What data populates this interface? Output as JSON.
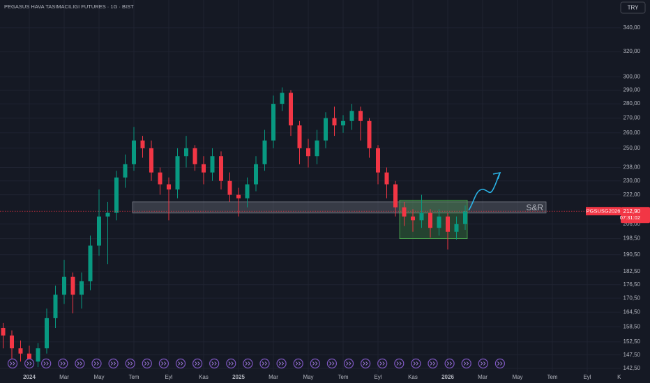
{
  "chart_data": {
    "type": "candlestick",
    "title": "PEGASUS HAVA TASIMACILIGI FUTURES · 1G · BIST",
    "currency": "TRY",
    "symbol": "PGSUSG2026",
    "last_price": {
      "value": 212.9,
      "label": "212,90"
    },
    "countdown": "07:31:02",
    "log_scale": true,
    "grid": true,
    "up_color": "#089981",
    "down_color": "#f23645",
    "xlim": [
      -1.68,
      33.92
    ],
    "ylim": [
      141,
      365
    ],
    "xticks": [
      {
        "value": 0,
        "label": "2024"
      },
      {
        "value": 2,
        "label": "Mar"
      },
      {
        "value": 4,
        "label": "May"
      },
      {
        "value": 6,
        "label": "Tem"
      },
      {
        "value": 8,
        "label": "Eyl"
      },
      {
        "value": 10,
        "label": "Kas"
      },
      {
        "value": 12,
        "label": "2025"
      },
      {
        "value": 14,
        "label": "Mar"
      },
      {
        "value": 16,
        "label": "May"
      },
      {
        "value": 18,
        "label": "Tem"
      },
      {
        "value": 20,
        "label": "Eyl"
      },
      {
        "value": 22,
        "label": "Kas"
      },
      {
        "value": 24,
        "label": "2026"
      },
      {
        "value": 26,
        "label": "Mar"
      },
      {
        "value": 28,
        "label": "May"
      },
      {
        "value": 30,
        "label": "Tem"
      },
      {
        "value": 32,
        "label": "Eyl"
      },
      {
        "value": 34,
        "label": "Kas"
      }
    ],
    "yticks": [
      {
        "value": 340,
        "label": "340,00"
      },
      {
        "value": 320,
        "label": "320,00"
      },
      {
        "value": 300,
        "label": "300,00"
      },
      {
        "value": 290,
        "label": "290,00"
      },
      {
        "value": 280,
        "label": "280,00"
      },
      {
        "value": 270,
        "label": "270,00"
      },
      {
        "value": 260,
        "label": "260,00"
      },
      {
        "value": 250,
        "label": "250,00"
      },
      {
        "value": 238,
        "label": "238,00"
      },
      {
        "value": 230,
        "label": "230,00"
      },
      {
        "value": 222,
        "label": "222,00"
      },
      {
        "value": 206,
        "label": "206,00"
      },
      {
        "value": 198.5,
        "label": "198,50"
      },
      {
        "value": 190.5,
        "label": "190,50"
      },
      {
        "value": 182.5,
        "label": "182,50"
      },
      {
        "value": 176.5,
        "label": "176,50"
      },
      {
        "value": 170.5,
        "label": "170,50"
      },
      {
        "value": 164.5,
        "label": "164,50"
      },
      {
        "value": 158.5,
        "label": "158,50"
      },
      {
        "value": 152.5,
        "label": "152,50"
      },
      {
        "value": 147.5,
        "label": "147,50"
      },
      {
        "value": 142.5,
        "label": "142,50"
      }
    ],
    "x": [
      -1.5,
      -1,
      -0.5,
      0,
      0.5,
      1,
      1.5,
      2,
      2.5,
      3,
      3.5,
      4,
      4.5,
      5,
      5.5,
      6,
      6.5,
      7,
      7.5,
      8,
      8.5,
      9,
      9.5,
      10,
      10.5,
      11,
      11.5,
      12,
      12.5,
      13,
      13.5,
      14,
      14.5,
      15,
      15.5,
      16,
      16.5,
      17,
      17.5,
      18,
      18.5,
      19,
      19.5,
      20,
      20.5,
      21,
      21.5,
      22,
      22.5,
      23,
      23.5,
      24,
      24.5,
      25
    ],
    "open": [
      158,
      155,
      150,
      148,
      145,
      150,
      162,
      172,
      180,
      172,
      178,
      195,
      210,
      212,
      232,
      240,
      255,
      250,
      235,
      228,
      225,
      245,
      250,
      240,
      235,
      245,
      230,
      222,
      220,
      228,
      240,
      255,
      280,
      288,
      265,
      250,
      245,
      255,
      270,
      265,
      268,
      275,
      268,
      250,
      235,
      228,
      215,
      210,
      208,
      212,
      204,
      210,
      202,
      206
    ],
    "high": [
      160,
      157,
      153,
      151,
      152,
      166,
      176,
      188,
      182,
      182,
      200,
      225,
      218,
      236,
      246,
      264,
      258,
      255,
      238,
      232,
      250,
      258,
      252,
      245,
      250,
      248,
      235,
      226,
      232,
      245,
      262,
      286,
      292,
      290,
      268,
      256,
      262,
      274,
      278,
      272,
      280,
      278,
      270,
      252,
      238,
      230,
      218,
      214,
      222,
      214,
      214,
      212,
      210,
      216
    ],
    "low": [
      150,
      146,
      145,
      143,
      143,
      148,
      158,
      168,
      164,
      166,
      174,
      190,
      186,
      208,
      226,
      236,
      244,
      230,
      222,
      208,
      220,
      238,
      236,
      228,
      230,
      225,
      218,
      210,
      215,
      224,
      236,
      250,
      275,
      258,
      240,
      238,
      240,
      250,
      258,
      260,
      262,
      255,
      244,
      228,
      220,
      210,
      205,
      202,
      204,
      199,
      200,
      193,
      198,
      203
    ],
    "close": [
      155,
      150,
      148,
      145,
      150,
      162,
      172,
      180,
      172,
      178,
      195,
      210,
      212,
      232,
      240,
      255,
      250,
      235,
      228,
      225,
      245,
      250,
      240,
      235,
      245,
      230,
      222,
      220,
      228,
      240,
      255,
      280,
      288,
      265,
      250,
      245,
      255,
      270,
      265,
      268,
      275,
      268,
      250,
      235,
      228,
      215,
      210,
      208,
      212,
      204,
      210,
      202,
      206,
      212.9
    ],
    "zones": [
      {
        "label": "S&R",
        "xlim": [
          5.92,
          29.64
        ],
        "ylim": [
          211.9,
          218
        ]
      },
      {
        "xlim": [
          21.24,
          25.12
        ],
        "ylim": [
          198.5,
          219
        ]
      }
    ]
  }
}
